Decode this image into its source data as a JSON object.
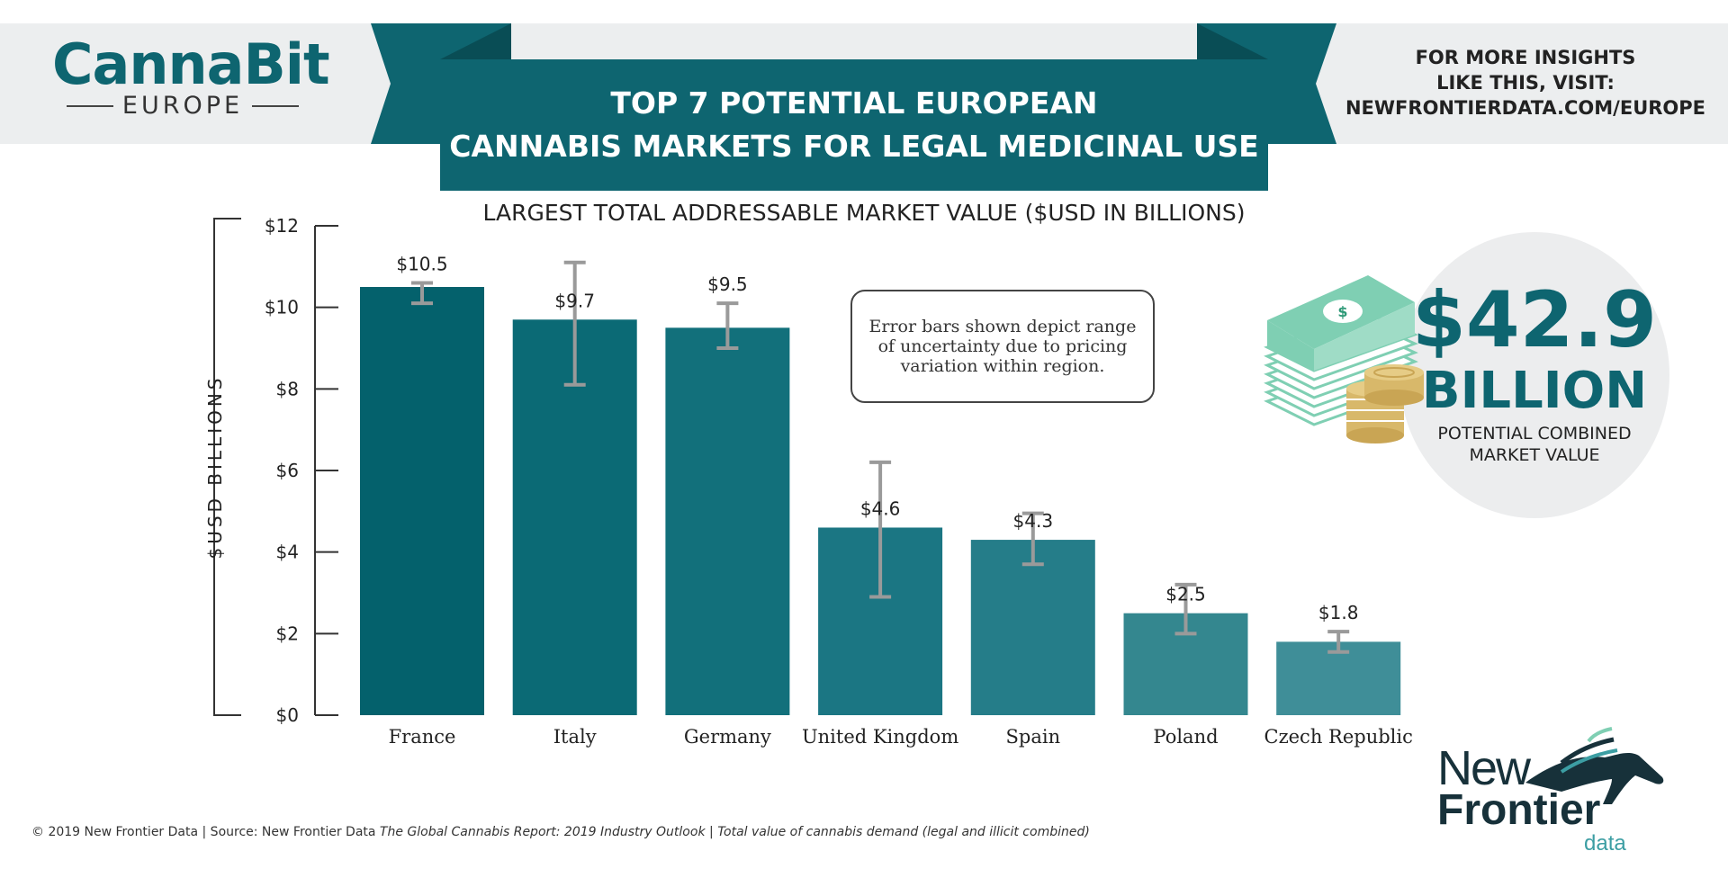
{
  "brand": {
    "name": "CannaBit",
    "region": "EUROPE"
  },
  "title": {
    "line1": "TOP 7 POTENTIAL EUROPEAN",
    "line2": "CANNABIS MARKETS FOR LEGAL MEDICINAL USE"
  },
  "insights": {
    "line1": "FOR MORE INSIGHTS",
    "line2": "LIKE THIS, VISIT:",
    "line3": "NEWFRONTIERDATA.COM/EUROPE"
  },
  "note": "Error bars shown depict range of uncertainty due to pricing variation within region.",
  "summary": {
    "value": "$42.9",
    "unit": "BILLION",
    "caption_line1": "POTENTIAL COMBINED",
    "caption_line2": "MARKET VALUE"
  },
  "footer": {
    "prefix": "© 2019  New Frontier Data | Source: New Frontier Data ",
    "report": "The Global Cannabis Report: 2019 Industry Outlook",
    "separator": " |  ",
    "note": "Total value of cannabis demand (legal and illicit combined)"
  },
  "logo": {
    "word1": "New",
    "word2": "Frontier",
    "word3": "data"
  },
  "colors": {
    "teal_dark": "#0e6570",
    "teal_mid": "#1e7a86",
    "teal_light": "#3f8e98",
    "error_bar": "#9a9a9a",
    "money_green": "#7fcfb3",
    "coin_gold": "#d8b86a"
  },
  "icons": [
    "money-stack-icon",
    "coin-stack-icon",
    "horse-head-icon"
  ],
  "chart_data": {
    "type": "bar",
    "title": "LARGEST TOTAL ADDRESSABLE MARKET VALUE ($USD IN BILLIONS)",
    "ylabel": "$USD BILLIONS",
    "xlabel": "",
    "ylim": [
      0,
      12
    ],
    "yticks": [
      0,
      2,
      4,
      6,
      8,
      10,
      12
    ],
    "ytick_labels": [
      "$0",
      "$2",
      "$4",
      "$6",
      "$8",
      "$10",
      "$12"
    ],
    "categories": [
      "France",
      "Italy",
      "Germany",
      "United Kingdom",
      "Spain",
      "Poland",
      "Czech Republic"
    ],
    "values": [
      10.5,
      9.7,
      9.5,
      4.6,
      4.3,
      2.5,
      1.8
    ],
    "value_labels": [
      "$10.5",
      "$9.7",
      "$9.5",
      "$4.6",
      "$4.3",
      "$2.5",
      "$1.8"
    ],
    "error_low": [
      10.1,
      8.1,
      9.0,
      2.9,
      3.7,
      2.0,
      1.55
    ],
    "error_high": [
      10.6,
      11.1,
      10.1,
      6.2,
      4.95,
      3.2,
      2.05
    ],
    "bar_colors": [
      "#04616c",
      "#0b6a75",
      "#12707b",
      "#1b7683",
      "#257d89",
      "#34878f",
      "#3f8e98"
    ],
    "grid": false,
    "legend": "none"
  }
}
